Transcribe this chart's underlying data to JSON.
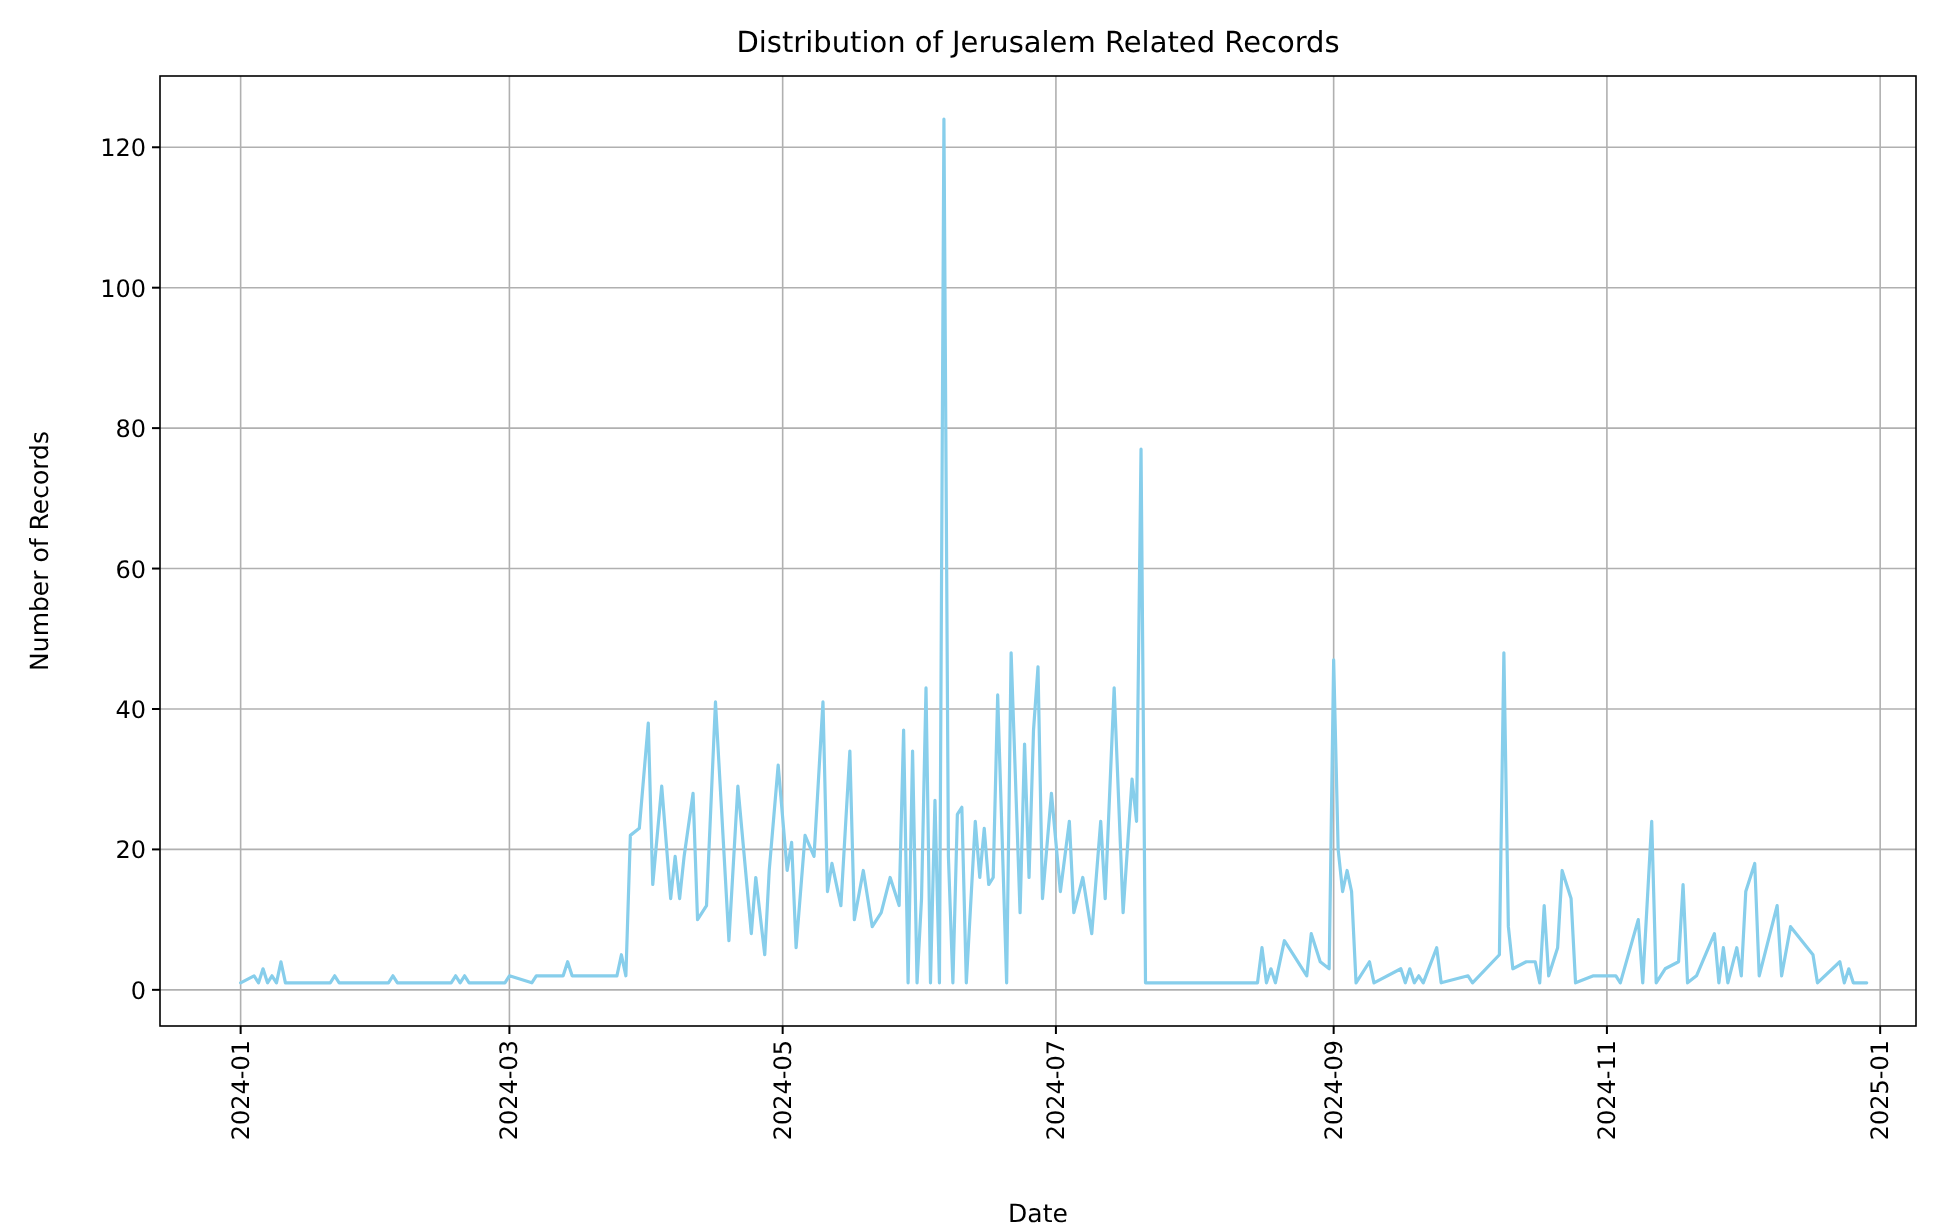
{
  "chart_data": {
    "type": "line",
    "title": "Distribution of Jerusalem Related Records",
    "xlabel": "Date",
    "ylabel": "Number of Records",
    "grid": true,
    "xlim": [
      "2023-12-14",
      "2025-01-09"
    ],
    "ylim": [
      -5.15,
      130.15
    ],
    "xticks": [
      "2024-01",
      "2024-03",
      "2024-05",
      "2024-07",
      "2024-09",
      "2024-11",
      "2025-01"
    ],
    "yticks": [
      0,
      20,
      40,
      60,
      80,
      100,
      120
    ],
    "x": [
      "2024-01-01",
      "2024-01-04",
      "2024-01-05",
      "2024-01-06",
      "2024-01-07",
      "2024-01-08",
      "2024-01-09",
      "2024-01-10",
      "2024-01-11",
      "2024-01-21",
      "2024-01-22",
      "2024-01-23",
      "2024-02-03",
      "2024-02-04",
      "2024-02-05",
      "2024-02-17",
      "2024-02-18",
      "2024-02-19",
      "2024-02-20",
      "2024-02-21",
      "2024-02-29",
      "2024-03-01",
      "2024-03-06",
      "2024-03-07",
      "2024-03-13",
      "2024-03-14",
      "2024-03-15",
      "2024-03-25",
      "2024-03-26",
      "2024-03-27",
      "2024-03-28",
      "2024-03-30",
      "2024-04-01",
      "2024-04-02",
      "2024-04-04",
      "2024-04-06",
      "2024-04-07",
      "2024-04-08",
      "2024-04-09",
      "2024-04-11",
      "2024-04-12",
      "2024-04-14",
      "2024-04-16",
      "2024-04-19",
      "2024-04-21",
      "2024-04-24",
      "2024-04-25",
      "2024-04-27",
      "2024-04-28",
      "2024-04-30",
      "2024-05-02",
      "2024-05-03",
      "2024-05-04",
      "2024-05-06",
      "2024-05-08",
      "2024-05-10",
      "2024-05-11",
      "2024-05-12",
      "2024-05-14",
      "2024-05-16",
      "2024-05-17",
      "2024-05-19",
      "2024-05-21",
      "2024-05-23",
      "2024-05-25",
      "2024-05-27",
      "2024-05-28",
      "2024-05-29",
      "2024-05-30",
      "2024-05-31",
      "2024-06-01",
      "2024-06-02",
      "2024-06-03",
      "2024-06-04",
      "2024-06-05",
      "2024-06-06",
      "2024-06-07",
      "2024-06-08",
      "2024-06-09",
      "2024-06-10",
      "2024-06-11",
      "2024-06-13",
      "2024-06-14",
      "2024-06-15",
      "2024-06-16",
      "2024-06-17",
      "2024-06-18",
      "2024-06-20",
      "2024-06-21",
      "2024-06-23",
      "2024-06-24",
      "2024-06-25",
      "2024-06-26",
      "2024-06-27",
      "2024-06-28",
      "2024-06-30",
      "2024-07-02",
      "2024-07-04",
      "2024-07-05",
      "2024-07-07",
      "2024-07-09",
      "2024-07-11",
      "2024-07-12",
      "2024-07-14",
      "2024-07-16",
      "2024-07-18",
      "2024-07-19",
      "2024-07-20",
      "2024-07-21",
      "2024-08-15",
      "2024-08-16",
      "2024-08-17",
      "2024-08-18",
      "2024-08-19",
      "2024-08-21",
      "2024-08-23",
      "2024-08-26",
      "2024-08-27",
      "2024-08-29",
      "2024-08-31",
      "2024-09-01",
      "2024-09-02",
      "2024-09-03",
      "2024-09-04",
      "2024-09-05",
      "2024-09-06",
      "2024-09-09",
      "2024-09-10",
      "2024-09-16",
      "2024-09-17",
      "2024-09-18",
      "2024-09-19",
      "2024-09-20",
      "2024-09-21",
      "2024-09-24",
      "2024-09-25",
      "2024-10-01",
      "2024-10-02",
      "2024-10-08",
      "2024-10-09",
      "2024-10-10",
      "2024-10-11",
      "2024-10-14",
      "2024-10-16",
      "2024-10-17",
      "2024-10-18",
      "2024-10-19",
      "2024-10-21",
      "2024-10-22",
      "2024-10-24",
      "2024-10-25",
      "2024-10-29",
      "2024-11-03",
      "2024-11-04",
      "2024-11-08",
      "2024-11-09",
      "2024-11-11",
      "2024-11-12",
      "2024-11-14",
      "2024-11-17",
      "2024-11-18",
      "2024-11-19",
      "2024-11-21",
      "2024-11-25",
      "2024-11-26",
      "2024-11-27",
      "2024-11-28",
      "2024-11-30",
      "2024-12-01",
      "2024-12-02",
      "2024-12-04",
      "2024-12-05",
      "2024-12-09",
      "2024-12-10",
      "2024-12-12",
      "2024-12-17",
      "2024-12-18",
      "2024-12-23",
      "2024-12-24",
      "2024-12-25",
      "2024-12-26",
      "2024-12-29"
    ],
    "series": [
      {
        "color": "#87ceeb",
        "values": [
          1,
          2,
          1,
          3,
          1,
          2,
          1,
          4,
          1,
          1,
          2,
          1,
          1,
          2,
          1,
          1,
          2,
          1,
          2,
          1,
          1,
          2,
          1,
          2,
          2,
          4,
          2,
          2,
          5,
          2,
          22,
          23,
          38,
          15,
          29,
          13,
          19,
          13,
          19,
          28,
          10,
          12,
          41,
          7,
          29,
          8,
          16,
          5,
          17,
          32,
          17,
          21,
          6,
          22,
          19,
          41,
          14,
          18,
          12,
          34,
          10,
          17,
          9,
          11,
          16,
          12,
          37,
          1,
          34,
          1,
          13,
          43,
          1,
          27,
          1,
          124,
          19,
          1,
          25,
          26,
          1,
          24,
          16,
          23,
          15,
          16,
          42,
          1,
          48,
          11,
          35,
          16,
          37,
          46,
          13,
          28,
          14,
          24,
          11,
          16,
          8,
          24,
          13,
          43,
          11,
          30,
          24,
          77,
          1,
          1,
          6,
          1,
          3,
          1,
          7,
          5,
          2,
          8,
          4,
          3,
          47,
          20,
          14,
          17,
          14,
          1,
          4,
          1,
          3,
          1,
          3,
          1,
          2,
          1,
          6,
          1,
          2,
          1,
          5,
          48,
          9,
          3,
          4,
          4,
          1,
          12,
          2,
          6,
          17,
          13,
          1,
          2,
          2,
          1,
          10,
          1,
          24,
          1,
          3,
          4,
          15,
          1,
          2,
          8,
          1,
          6,
          1,
          6,
          2,
          14,
          18,
          2,
          12,
          2,
          9,
          5,
          1,
          4,
          1,
          3,
          1,
          1
        ]
      }
    ]
  }
}
